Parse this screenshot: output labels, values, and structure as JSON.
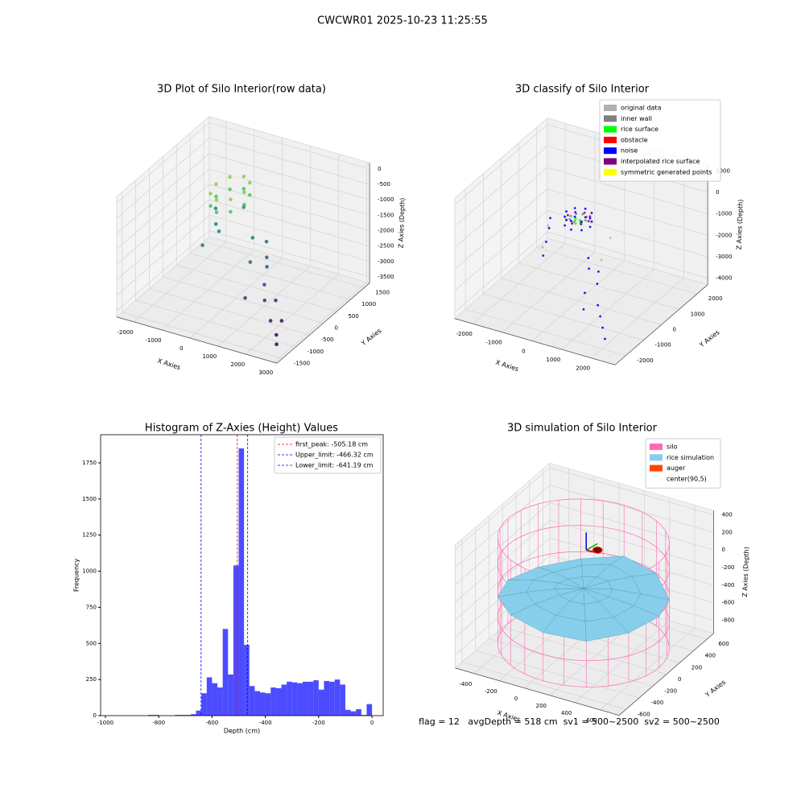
{
  "title": "CWCWR01 2025-10-23 11:25:55",
  "footer": "flag = 12   avgDepth = 518 cm  sv1 = 500~2500  sv2 = 500~2500",
  "chart_data": [
    {
      "type": "scatter3d",
      "title": "3D Plot of Silo Interior(row data)",
      "xlabel": "X Axies",
      "ylabel": "Y Axies",
      "zlabel": "Z Axies (Depth)",
      "xlim": [
        -2600,
        3100
      ],
      "ylim": [
        -1700,
        1700
      ],
      "zlim": [
        -3700,
        200
      ],
      "xticks": [
        -2000,
        -1000,
        0,
        1000,
        2000,
        3000
      ],
      "yticks": [
        -1500,
        -1000,
        -500,
        0,
        500,
        1000,
        1500
      ],
      "zticks": [
        0,
        -500,
        -1000,
        -1500,
        -2000,
        -2500,
        -3000,
        -3500
      ],
      "colormap": "viridis",
      "series": [
        {
          "x": [
            0,
            -146,
            -500,
            -854,
            -1000,
            -854,
            -500,
            -146,
            0,
            -146,
            -500,
            -854,
            -1000,
            -854,
            -500,
            -146,
            -1500,
            -1200,
            -800,
            -1000,
            500,
            800,
            1000,
            600,
            -600,
            200,
            1200,
            1500,
            1700,
            2000,
            2400,
            2200,
            1000,
            2600
          ],
          "y": [
            300,
            654,
            800,
            654,
            300,
            -54,
            -200,
            -54,
            300,
            654,
            800,
            654,
            300,
            -54,
            -200,
            -54,
            800,
            500,
            200,
            -200,
            600,
            300,
            100,
            -100,
            900,
            400,
            -200,
            -500,
            -300,
            -800,
            -1000,
            -600,
            -700,
            -1200
          ],
          "z": [
            -500,
            -500,
            -500,
            -500,
            -500,
            -500,
            -500,
            -500,
            -900,
            -900,
            -900,
            -900,
            -900,
            -900,
            -900,
            -900,
            -1800,
            -2000,
            -1900,
            -2100,
            -2200,
            -2400,
            -2500,
            -2300,
            -1600,
            -2000,
            -2800,
            -3000,
            -3100,
            -3300,
            -3500,
            -3400,
            -2900,
            -3600
          ]
        }
      ]
    },
    {
      "type": "scatter3d",
      "title": "3D classify of Silo Interior",
      "xlabel": "X Axies",
      "ylabel": "Y Axies",
      "zlabel": "Z Axies (Depth)",
      "xlim": [
        -2600,
        2800
      ],
      "ylim": [
        -2600,
        2600
      ],
      "zlim": [
        -4300,
        1300
      ],
      "xticks": [
        -2000,
        -1000,
        0,
        1000,
        2000
      ],
      "yticks": [
        -2000,
        -1000,
        0,
        1000,
        2000
      ],
      "zticks": [
        1000,
        0,
        -1000,
        -2000,
        -3000,
        -4000
      ],
      "legend": "upper right",
      "series": [
        {
          "name": "original data",
          "color": "#b0b0b0",
          "x": [
            -1200,
            -900,
            600,
            900
          ],
          "y": [
            300,
            -500,
            800,
            -200
          ],
          "z": [
            -1500,
            -1800,
            -1700,
            -1900
          ]
        },
        {
          "name": "inner wall",
          "color": "#808080",
          "x": [
            250,
            177,
            0,
            -177,
            -250,
            -177,
            0,
            177
          ],
          "y": [
            0,
            177,
            250,
            177,
            0,
            -177,
            -250,
            -177
          ],
          "z": [
            -450,
            -450,
            -450,
            -450,
            -450,
            -450,
            -450,
            -450
          ]
        },
        {
          "name": "rice surface",
          "color": "#00ff00",
          "x": [
            100,
            -100,
            0,
            150,
            -150,
            0
          ],
          "y": [
            0,
            0,
            100,
            -100,
            100,
            -150
          ],
          "z": [
            -600,
            -600,
            -620,
            -610,
            -590,
            -600
          ]
        },
        {
          "name": "obstacle",
          "color": "#ff0000",
          "x": [],
          "y": [],
          "z": []
        },
        {
          "name": "noise",
          "color": "#0000ff",
          "x": [
            400,
            283,
            0,
            -283,
            -400,
            -283,
            0,
            283,
            400,
            283,
            0,
            -283,
            -400,
            -283,
            0,
            283,
            -1100,
            -900,
            -1300,
            700,
            900,
            1100,
            1300,
            1000,
            1500,
            1700,
            1900,
            2100,
            1200,
            -700
          ],
          "y": [
            0,
            283,
            400,
            283,
            0,
            -283,
            -400,
            -283,
            0,
            283,
            400,
            283,
            0,
            -283,
            -400,
            -283,
            200,
            -300,
            600,
            -600,
            -900,
            -700,
            -1100,
            -1300,
            -1400,
            -1600,
            -1800,
            -2000,
            -1700,
            -800
          ],
          "z": [
            -300,
            -300,
            -300,
            -300,
            -300,
            -300,
            -300,
            -300,
            -700,
            -700,
            -700,
            -700,
            -700,
            -700,
            -700,
            -700,
            -1500,
            -1700,
            -1400,
            -1600,
            -1800,
            -2000,
            -2200,
            -2600,
            -2900,
            -3200,
            -3500,
            -3800,
            -3000,
            -1900
          ]
        },
        {
          "name": "interpolated rice surface",
          "color": "#800080",
          "x": [
            350,
            247,
            0,
            -247,
            -350,
            -247,
            0,
            247
          ],
          "y": [
            0,
            247,
            350,
            247,
            0,
            -247,
            -350,
            -247
          ],
          "z": [
            -450,
            -450,
            -450,
            -450,
            -450,
            -450,
            -450,
            -450
          ]
        },
        {
          "name": "symmetric generated points",
          "color": "#ffff00",
          "x": [],
          "y": [],
          "z": []
        }
      ]
    },
    {
      "type": "histogram",
      "title": "Histogram of Z-Axies (Height) Values",
      "xlabel": "Depth (cm)",
      "ylabel": "Frequency",
      "xlim": [
        -1018,
        42
      ],
      "ylim": [
        0,
        1945
      ],
      "xticks": [
        -1000,
        -800,
        -600,
        -400,
        -200,
        0
      ],
      "yticks": [
        0,
        250,
        500,
        750,
        1000,
        1250,
        1500,
        1750
      ],
      "color": "#0000ff",
      "alpha": 0.7,
      "legend": "upper right",
      "bins": [
        -1000,
        -980,
        -960,
        -940,
        -920,
        -900,
        -880,
        -860,
        -840,
        -820,
        -800,
        -780,
        -760,
        -740,
        -720,
        -700,
        -680,
        -660,
        -640,
        -620,
        -600,
        -580,
        -560,
        -540,
        -520,
        -500,
        -480,
        -460,
        -440,
        -420,
        -400,
        -380,
        -360,
        -340,
        -320,
        -300,
        -280,
        -260,
        -240,
        -220,
        -200,
        -180,
        -160,
        -140,
        -120,
        -100,
        -80,
        -60,
        -40,
        -20,
        0
      ],
      "counts": [
        0,
        0,
        0,
        0,
        0,
        0,
        0,
        0,
        5,
        5,
        0,
        0,
        0,
        5,
        5,
        5,
        10,
        35,
        155,
        265,
        225,
        195,
        600,
        285,
        1040,
        1850,
        490,
        205,
        170,
        160,
        155,
        195,
        190,
        215,
        235,
        230,
        225,
        235,
        235,
        245,
        180,
        240,
        235,
        250,
        215,
        40,
        30,
        45,
        5,
        80
      ],
      "lines": [
        {
          "name": "first_peak: -505.18 cm",
          "value": -505.18,
          "color": "#ff0000"
        },
        {
          "name": "Upper_limit: -466.32 cm",
          "value": -466.32,
          "color": "#0000ff"
        },
        {
          "name": "Lower_limit: -641.19 cm",
          "value": -641.19,
          "color": "#0000ff"
        }
      ]
    },
    {
      "type": "simulation3d",
      "title": "3D simulation of Silo Interior",
      "xlabel": "X Axies",
      "ylabel": "Y Axies",
      "zlabel": "Z Axies (Depth)",
      "xlim": [
        -550,
        750
      ],
      "ylim": [
        -700,
        700
      ],
      "zlim": [
        -950,
        450
      ],
      "xticks": [
        -400,
        -200,
        0,
        200,
        400,
        600
      ],
      "yticks": [
        -600,
        -400,
        -200,
        0,
        200,
        400,
        600
      ],
      "zticks": [
        -800,
        -600,
        -400,
        -200,
        0,
        200,
        400
      ],
      "legend": "upper right",
      "series": [
        {
          "name": "silo",
          "color": "#ff69b4",
          "radius": 600,
          "z": [
            -900,
            -600,
            -300,
            0,
            300
          ]
        },
        {
          "name": "rice simulation",
          "color": "#87ceeb",
          "radius": [
            0,
            200,
            400,
            600
          ],
          "z": [
            [
              -250,
              -250,
              -250,
              -250,
              -250,
              -250,
              -250,
              -250,
              -250,
              -250,
              -250,
              -250
            ],
            [
              -260,
              -250,
              -240,
              -250,
              -270,
              -280,
              -270,
              -260,
              -250,
              -260,
              -270,
              -260
            ],
            [
              -280,
              -300,
              -260,
              -240,
              -300,
              -340,
              -320,
              -300,
              -280,
              -290,
              -310,
              -300
            ],
            [
              -320,
              -360,
              -300,
              -280,
              -380,
              -420,
              -400,
              -360,
              -330,
              -350,
              -380,
              -340
            ]
          ]
        },
        {
          "name": "auger",
          "color": "#ff4500",
          "x": [
            150
          ],
          "y": [
            100
          ],
          "z": [
            150
          ]
        },
        {
          "name": "center(90,5)",
          "color": "#ffffff",
          "center": [
            90,
            5
          ]
        }
      ]
    }
  ]
}
